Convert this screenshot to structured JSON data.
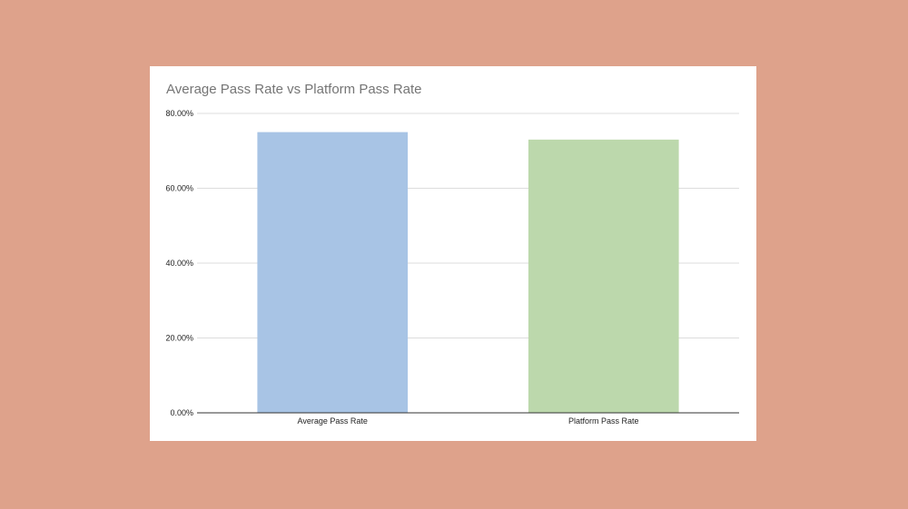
{
  "colors": {
    "background": "#DEA28B",
    "card": "#FFFFFF",
    "gridline": "#DDDDDD",
    "axis_line": "#333333",
    "title_text": "#757575"
  },
  "chart_data": {
    "type": "bar",
    "title": "Average Pass Rate vs Platform Pass Rate",
    "xlabel": "",
    "ylabel": "",
    "categories": [
      "Average Pass Rate",
      "Platform Pass Rate"
    ],
    "values": [
      75,
      73
    ],
    "bar_colors": [
      "#A8C4E5",
      "#BCD8AC"
    ],
    "ylim": [
      0,
      80
    ],
    "yticks": [
      0,
      20,
      40,
      60,
      80
    ],
    "ytick_labels": [
      "0.00%",
      "20.00%",
      "40.00%",
      "60.00%",
      "80.00%"
    ],
    "grid": true,
    "legend": "none"
  }
}
